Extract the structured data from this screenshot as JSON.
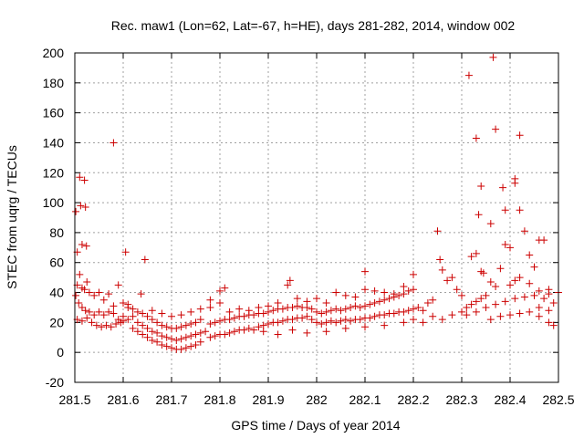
{
  "chart_data": {
    "type": "scatter",
    "title": "Rec. maw1 (Lon=62, Lat=-67, h=HE), days 281-282, 2014, window 002",
    "xlabel": "GPS time / Days of year 2014",
    "ylabel": "STEC from uqrg / TECUs",
    "xlim": [
      281.5,
      282.5
    ],
    "ylim": [
      -20,
      200
    ],
    "xticks": [
      281.5,
      281.6,
      281.7,
      281.8,
      281.9,
      282.0,
      282.1,
      282.2,
      282.3,
      282.4,
      282.5
    ],
    "xtick_labels": [
      "281.5",
      "281.6",
      "281.7",
      "281.8",
      "281.9",
      "282",
      "282.1",
      "282.2",
      "282.3",
      "282.4",
      "282.5"
    ],
    "yticks": [
      -20,
      0,
      20,
      40,
      60,
      80,
      100,
      120,
      140,
      160,
      180,
      200
    ],
    "ytick_labels": [
      "-20",
      "0",
      "20",
      "40",
      "60",
      "80",
      "100",
      "120",
      "140",
      "160",
      "180",
      "200"
    ],
    "grid": true,
    "marker": "+",
    "marker_color": "#cc0000",
    "series": [
      {
        "name": "STEC",
        "points": [
          [
            281.502,
            94
          ],
          [
            281.505,
            67
          ],
          [
            281.51,
            117
          ],
          [
            281.512,
            98
          ],
          [
            281.515,
            72
          ],
          [
            281.52,
            115
          ],
          [
            281.522,
            97
          ],
          [
            281.524,
            71
          ],
          [
            281.505,
            45
          ],
          [
            281.51,
            52
          ],
          [
            281.515,
            43
          ],
          [
            281.52,
            42
          ],
          [
            281.525,
            47
          ],
          [
            281.53,
            40
          ],
          [
            281.54,
            38
          ],
          [
            281.55,
            40
          ],
          [
            281.56,
            35
          ],
          [
            281.57,
            39
          ],
          [
            281.58,
            31
          ],
          [
            281.59,
            45
          ],
          [
            281.6,
            33
          ],
          [
            281.61,
            30
          ],
          [
            281.502,
            38
          ],
          [
            281.508,
            33
          ],
          [
            281.515,
            30
          ],
          [
            281.522,
            28
          ],
          [
            281.53,
            27
          ],
          [
            281.54,
            25
          ],
          [
            281.55,
            27
          ],
          [
            281.56,
            25
          ],
          [
            281.57,
            27
          ],
          [
            281.58,
            26
          ],
          [
            281.59,
            22
          ],
          [
            281.6,
            24
          ],
          [
            281.505,
            22
          ],
          [
            281.515,
            21
          ],
          [
            281.525,
            23
          ],
          [
            281.535,
            20
          ],
          [
            281.545,
            18
          ],
          [
            281.555,
            17
          ],
          [
            281.565,
            18
          ],
          [
            281.575,
            17
          ],
          [
            281.585,
            19
          ],
          [
            281.595,
            20
          ],
          [
            281.6,
            21
          ],
          [
            281.58,
            140
          ],
          [
            281.605,
            67
          ],
          [
            281.645,
            62
          ],
          [
            281.637,
            39
          ],
          [
            281.61,
            22
          ],
          [
            281.62,
            16
          ],
          [
            281.63,
            14
          ],
          [
            281.64,
            12
          ],
          [
            281.65,
            10
          ],
          [
            281.66,
            8
          ],
          [
            281.67,
            7
          ],
          [
            281.68,
            5
          ],
          [
            281.69,
            4
          ],
          [
            281.7,
            3
          ],
          [
            281.71,
            2
          ],
          [
            281.72,
            2
          ],
          [
            281.73,
            3
          ],
          [
            281.74,
            4
          ],
          [
            281.75,
            5
          ],
          [
            281.76,
            7
          ],
          [
            281.62,
            24
          ],
          [
            281.63,
            20
          ],
          [
            281.64,
            18
          ],
          [
            281.65,
            16
          ],
          [
            281.66,
            14
          ],
          [
            281.67,
            13
          ],
          [
            281.68,
            11
          ],
          [
            281.69,
            10
          ],
          [
            281.7,
            9
          ],
          [
            281.71,
            8
          ],
          [
            281.72,
            9
          ],
          [
            281.73,
            10
          ],
          [
            281.74,
            11
          ],
          [
            281.75,
            12
          ],
          [
            281.76,
            13
          ],
          [
            281.77,
            14
          ],
          [
            281.61,
            32
          ],
          [
            281.62,
            29
          ],
          [
            281.63,
            27
          ],
          [
            281.64,
            26
          ],
          [
            281.65,
            24
          ],
          [
            281.66,
            22
          ],
          [
            281.67,
            20
          ],
          [
            281.68,
            18
          ],
          [
            281.69,
            17
          ],
          [
            281.7,
            16
          ],
          [
            281.71,
            16
          ],
          [
            281.72,
            17
          ],
          [
            281.73,
            18
          ],
          [
            281.74,
            19
          ],
          [
            281.75,
            20
          ],
          [
            281.76,
            22
          ],
          [
            281.66,
            28
          ],
          [
            281.68,
            26
          ],
          [
            281.7,
            24
          ],
          [
            281.72,
            25
          ],
          [
            281.74,
            27
          ],
          [
            281.76,
            29
          ],
          [
            281.78,
            30
          ],
          [
            281.8,
            33
          ],
          [
            281.78,
            35
          ],
          [
            281.8,
            41
          ],
          [
            281.81,
            43
          ],
          [
            281.78,
            10
          ],
          [
            281.79,
            11
          ],
          [
            281.8,
            12
          ],
          [
            281.81,
            12
          ],
          [
            281.82,
            13
          ],
          [
            281.83,
            14
          ],
          [
            281.84,
            15
          ],
          [
            281.85,
            15
          ],
          [
            281.86,
            16
          ],
          [
            281.87,
            15
          ],
          [
            281.88,
            17
          ],
          [
            281.89,
            18
          ],
          [
            281.9,
            19
          ],
          [
            281.91,
            20
          ],
          [
            281.92,
            20
          ],
          [
            281.93,
            21
          ],
          [
            281.94,
            22
          ],
          [
            281.95,
            22
          ],
          [
            281.96,
            23
          ],
          [
            281.97,
            23
          ],
          [
            281.98,
            24
          ],
          [
            281.99,
            22
          ],
          [
            281.78,
            19
          ],
          [
            281.79,
            20
          ],
          [
            281.8,
            21
          ],
          [
            281.81,
            22
          ],
          [
            281.82,
            22
          ],
          [
            281.83,
            23
          ],
          [
            281.84,
            24
          ],
          [
            281.85,
            24
          ],
          [
            281.86,
            25
          ],
          [
            281.87,
            25
          ],
          [
            281.88,
            26
          ],
          [
            281.89,
            26
          ],
          [
            281.9,
            27
          ],
          [
            281.91,
            28
          ],
          [
            281.92,
            29
          ],
          [
            281.93,
            29
          ],
          [
            281.94,
            30
          ],
          [
            281.95,
            30
          ],
          [
            281.96,
            31
          ],
          [
            281.97,
            30
          ],
          [
            281.98,
            30
          ],
          [
            281.99,
            29
          ],
          [
            281.82,
            27
          ],
          [
            281.84,
            29
          ],
          [
            281.86,
            28
          ],
          [
            281.88,
            30
          ],
          [
            281.9,
            31
          ],
          [
            281.92,
            33
          ],
          [
            281.94,
            45
          ],
          [
            281.945,
            48
          ],
          [
            281.96,
            36
          ],
          [
            281.98,
            34
          ],
          [
            281.89,
            14
          ],
          [
            281.92,
            12
          ],
          [
            281.95,
            15
          ],
          [
            281.98,
            13
          ],
          [
            282.0,
            20
          ],
          [
            282.01,
            19
          ],
          [
            282.02,
            20
          ],
          [
            282.03,
            21
          ],
          [
            282.04,
            20
          ],
          [
            282.05,
            21
          ],
          [
            282.06,
            22
          ],
          [
            282.07,
            21
          ],
          [
            282.08,
            22
          ],
          [
            282.09,
            22
          ],
          [
            282.1,
            23
          ],
          [
            282.11,
            23
          ],
          [
            282.12,
            24
          ],
          [
            282.13,
            25
          ],
          [
            282.14,
            25
          ],
          [
            282.15,
            26
          ],
          [
            282.16,
            26
          ],
          [
            282.17,
            27
          ],
          [
            282.18,
            27
          ],
          [
            282.19,
            28
          ],
          [
            282.2,
            29
          ],
          [
            282.0,
            27
          ],
          [
            282.01,
            26
          ],
          [
            282.02,
            27
          ],
          [
            282.03,
            28
          ],
          [
            282.04,
            29
          ],
          [
            282.05,
            28
          ],
          [
            282.06,
            29
          ],
          [
            282.07,
            30
          ],
          [
            282.08,
            31
          ],
          [
            282.09,
            30
          ],
          [
            282.1,
            31
          ],
          [
            282.11,
            32
          ],
          [
            282.12,
            33
          ],
          [
            282.13,
            34
          ],
          [
            282.14,
            35
          ],
          [
            282.15,
            36
          ],
          [
            282.16,
            37
          ],
          [
            282.17,
            38
          ],
          [
            282.18,
            39
          ],
          [
            282.19,
            41
          ],
          [
            282.2,
            42
          ],
          [
            282.0,
            36
          ],
          [
            282.02,
            33
          ],
          [
            282.04,
            40
          ],
          [
            282.06,
            38
          ],
          [
            282.08,
            37
          ],
          [
            282.1,
            42
          ],
          [
            282.12,
            41
          ],
          [
            282.14,
            40
          ],
          [
            282.16,
            39
          ],
          [
            282.18,
            44
          ],
          [
            282.2,
            52
          ],
          [
            282.1,
            54
          ],
          [
            282.02,
            14
          ],
          [
            282.06,
            16
          ],
          [
            282.1,
            17
          ],
          [
            282.14,
            18
          ],
          [
            282.18,
            20
          ],
          [
            282.2,
            22
          ],
          [
            282.21,
            30
          ],
          [
            282.22,
            28
          ],
          [
            282.23,
            33
          ],
          [
            282.24,
            35
          ],
          [
            282.25,
            81
          ],
          [
            282.255,
            62
          ],
          [
            282.26,
            55
          ],
          [
            282.27,
            48
          ],
          [
            282.28,
            50
          ],
          [
            282.29,
            42
          ],
          [
            282.3,
            38
          ],
          [
            282.22,
            20
          ],
          [
            282.24,
            24
          ],
          [
            282.26,
            22
          ],
          [
            282.28,
            25
          ],
          [
            282.3,
            27
          ],
          [
            282.31,
            30
          ],
          [
            282.32,
            32
          ],
          [
            282.33,
            34
          ],
          [
            282.34,
            36
          ],
          [
            282.35,
            38
          ],
          [
            282.315,
            185
          ],
          [
            282.33,
            143
          ],
          [
            282.34,
            111
          ],
          [
            282.345,
            53
          ],
          [
            282.335,
            92
          ],
          [
            282.36,
            86
          ],
          [
            282.365,
            197
          ],
          [
            282.37,
            149
          ],
          [
            282.385,
            110
          ],
          [
            282.39,
            95
          ],
          [
            282.4,
            70
          ],
          [
            282.41,
            113
          ],
          [
            282.41,
            116
          ],
          [
            282.42,
            145
          ],
          [
            282.42,
            95
          ],
          [
            282.43,
            81
          ],
          [
            282.44,
            65
          ],
          [
            282.45,
            57
          ],
          [
            282.46,
            75
          ],
          [
            282.47,
            75
          ],
          [
            282.48,
            42
          ],
          [
            282.32,
            64
          ],
          [
            282.33,
            66
          ],
          [
            282.34,
            54
          ],
          [
            282.36,
            47
          ],
          [
            282.37,
            44
          ],
          [
            282.38,
            56
          ],
          [
            282.39,
            72
          ],
          [
            282.4,
            45
          ],
          [
            282.41,
            48
          ],
          [
            282.42,
            50
          ],
          [
            282.44,
            46
          ],
          [
            282.46,
            41
          ],
          [
            282.48,
            39
          ],
          [
            282.31,
            25
          ],
          [
            282.33,
            27
          ],
          [
            282.35,
            30
          ],
          [
            282.37,
            32
          ],
          [
            282.39,
            34
          ],
          [
            282.41,
            36
          ],
          [
            282.43,
            37
          ],
          [
            282.45,
            38
          ],
          [
            282.47,
            36
          ],
          [
            282.49,
            33
          ],
          [
            282.5,
            40
          ],
          [
            282.36,
            22
          ],
          [
            282.38,
            24
          ],
          [
            282.4,
            25
          ],
          [
            282.42,
            26
          ],
          [
            282.44,
            27
          ],
          [
            282.46,
            24
          ],
          [
            282.48,
            20
          ],
          [
            282.49,
            18
          ],
          [
            282.46,
            30
          ],
          [
            282.48,
            28
          ]
        ]
      }
    ]
  }
}
